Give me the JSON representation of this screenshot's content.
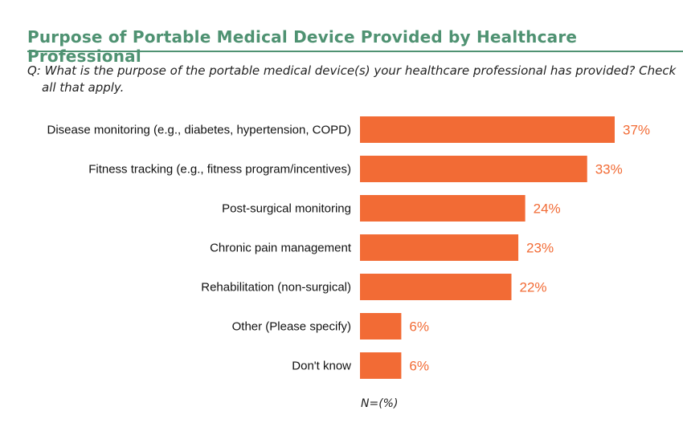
{
  "header": {
    "title": "Purpose of Portable Medical Device Provided by Healthcare Professional",
    "question": "Q: What is the purpose of the portable medical device(s) your healthcare professional has provided? Check all that apply."
  },
  "colors": {
    "title": "#4f9272",
    "rule": "#4f9272",
    "bar": "#f26b35",
    "value_label": "#f26b35"
  },
  "chart_data": {
    "type": "bar",
    "orientation": "horizontal",
    "categories": [
      "Disease monitoring (e.g., diabetes, hypertension, COPD)",
      "Fitness tracking (e.g., fitness program/incentives)",
      "Post-surgical monitoring",
      "Chronic pain management",
      "Rehabilitation (non-surgical)",
      "Other (Please specify)",
      "Don't know"
    ],
    "values": [
      37,
      33,
      24,
      23,
      22,
      6,
      6
    ],
    "value_labels": [
      "37%",
      "33%",
      "24%",
      "23%",
      "22%",
      "6%",
      "6%"
    ],
    "title": "Purpose of Portable Medical Device Provided by Healthcare Professional",
    "xlabel": "N=(%)",
    "ylabel": "",
    "xlim": [
      0,
      37
    ],
    "grid": false,
    "legend": "none"
  }
}
